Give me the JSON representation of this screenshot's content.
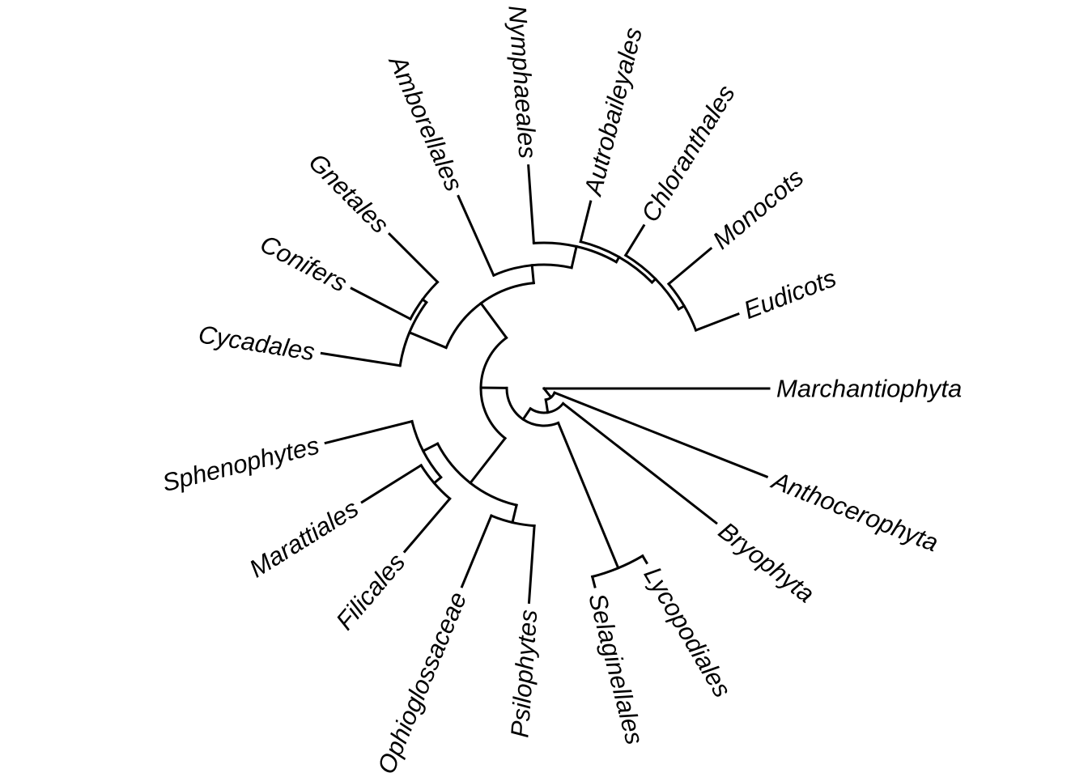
{
  "tree": {
    "type": "circular-phylogram",
    "tips": [
      {
        "key": "marchantiophyta",
        "label": "Marchantiophyta"
      },
      {
        "key": "anthocerophyta",
        "label": "Anthocerophyta"
      },
      {
        "key": "bryophyta",
        "label": "Bryophyta"
      },
      {
        "key": "lycopodiales",
        "label": "Lycopodiales"
      },
      {
        "key": "selaginellales",
        "label": "Selaginellales"
      },
      {
        "key": "psilophytes",
        "label": "Psilophytes"
      },
      {
        "key": "ophioglossaceae",
        "label": "Ophioglossaceae"
      },
      {
        "key": "filicales",
        "label": "Filicales"
      },
      {
        "key": "marattiales",
        "label": "Marattiales"
      },
      {
        "key": "sphenophytes",
        "label": "Sphenophytes"
      },
      {
        "key": "cycadales",
        "label": "Cycadales"
      },
      {
        "key": "conifers",
        "label": "Conifers"
      },
      {
        "key": "gnetales",
        "label": "Gnetales"
      },
      {
        "key": "amborellales",
        "label": "Amborellales"
      },
      {
        "key": "nymphaeales",
        "label": "Nymphaeales"
      },
      {
        "key": "autrobaileyales",
        "label": "Autrobaileyales"
      },
      {
        "key": "chloranthales",
        "label": "Chloranthales"
      },
      {
        "key": "monocots",
        "label": "Monocots"
      },
      {
        "key": "eudicots",
        "label": "Eudicots"
      }
    ],
    "topology": "(Marchantiophyta,(Anthocerophyta,(Bryophyta,((Lycopodiales,Selaginellales),(((Psilophytes,Ophioglossaceae),((Filicales,Marattiales),Sphenophytes)),((Cycadales,(Conifers,Gnetales)),(Amborellales,(Nymphaeales,(Autrobaileyales,(Chloranthales,(Monocots,Eudicots)))))))))))",
    "line_color": "#000000",
    "background": "#ffffff"
  }
}
